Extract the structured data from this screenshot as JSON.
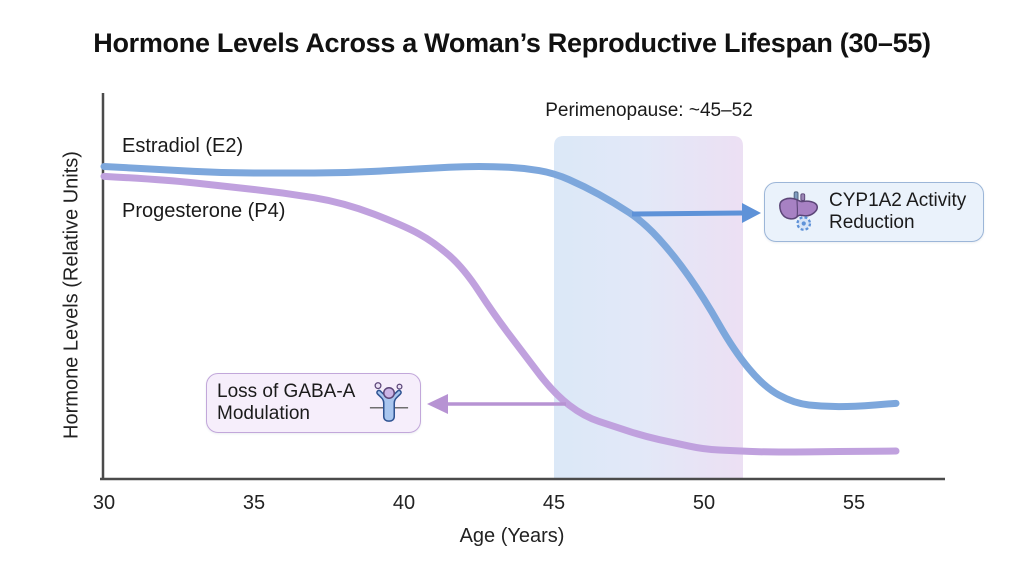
{
  "title": "Hormone Levels Across a Woman’s Reproductive Lifespan (30–55)",
  "axes": {
    "x_label": "Age (Years)",
    "y_label": "Hormone Levels (Relative Units)",
    "x_ticks": [
      "30",
      "35",
      "40",
      "45",
      "50",
      "55"
    ]
  },
  "series_labels": {
    "e2": "Estradiol (E2)",
    "p4": "Progesterone (P4)"
  },
  "band_label": "Perimenopause: ~45–52",
  "annotations": {
    "cyp": {
      "line1": "CYP1A2 Activity",
      "line2": "Reduction",
      "icon": "liver-gear-icon"
    },
    "gaba": {
      "line1": "Loss of GABA-A",
      "line2": "Modulation",
      "icon": "person-receptor-icon"
    }
  },
  "colors": {
    "e2_curve": "#7da7dc",
    "p4_curve": "#c0a1de",
    "e2_arrow": "#5e92d8",
    "p4_arrow": "#b793d3",
    "band_left": "#d7e5f6",
    "band_right": "#eadcf2",
    "cyp_box_bg": "#eaf2fb",
    "cyp_box_border": "#9cb6d8",
    "gaba_box_bg": "#f6eefb",
    "gaba_box_border": "#c2a7da",
    "axis_spine": "#4b4b4b"
  },
  "chart_data": {
    "type": "line",
    "title": "Hormone Levels Across a Woman’s Reproductive Lifespan (30–55)",
    "xlabel": "Age (Years)",
    "ylabel": "Hormone Levels (Relative Units)",
    "xlim": [
      30,
      56.5
    ],
    "ylim": [
      0,
      1
    ],
    "grid": false,
    "legend": "inline-labels",
    "x": [
      30,
      32,
      34,
      36,
      38,
      40,
      41,
      42,
      43,
      44,
      45,
      46,
      47,
      48,
      49,
      50,
      51,
      52,
      53,
      54,
      55,
      56.4
    ],
    "series": [
      {
        "name": "Estradiol (E2)",
        "color": "#7da7dc",
        "values": [
          0.95,
          0.94,
          0.93,
          0.93,
          0.93,
          0.94,
          0.945,
          0.95,
          0.95,
          0.945,
          0.93,
          0.89,
          0.84,
          0.78,
          0.68,
          0.55,
          0.39,
          0.28,
          0.23,
          0.22,
          0.22,
          0.23
        ]
      },
      {
        "name": "Progesterone (P4)",
        "color": "#c0a1de",
        "values": [
          0.92,
          0.91,
          0.89,
          0.87,
          0.84,
          0.77,
          0.72,
          0.64,
          0.5,
          0.38,
          0.26,
          0.19,
          0.16,
          0.13,
          0.11,
          0.09,
          0.086,
          0.082,
          0.082,
          0.083,
          0.084,
          0.085
        ]
      }
    ],
    "band": {
      "x_start": 45,
      "x_end": 51.3,
      "label": "Perimenopause: ~45–52"
    }
  }
}
